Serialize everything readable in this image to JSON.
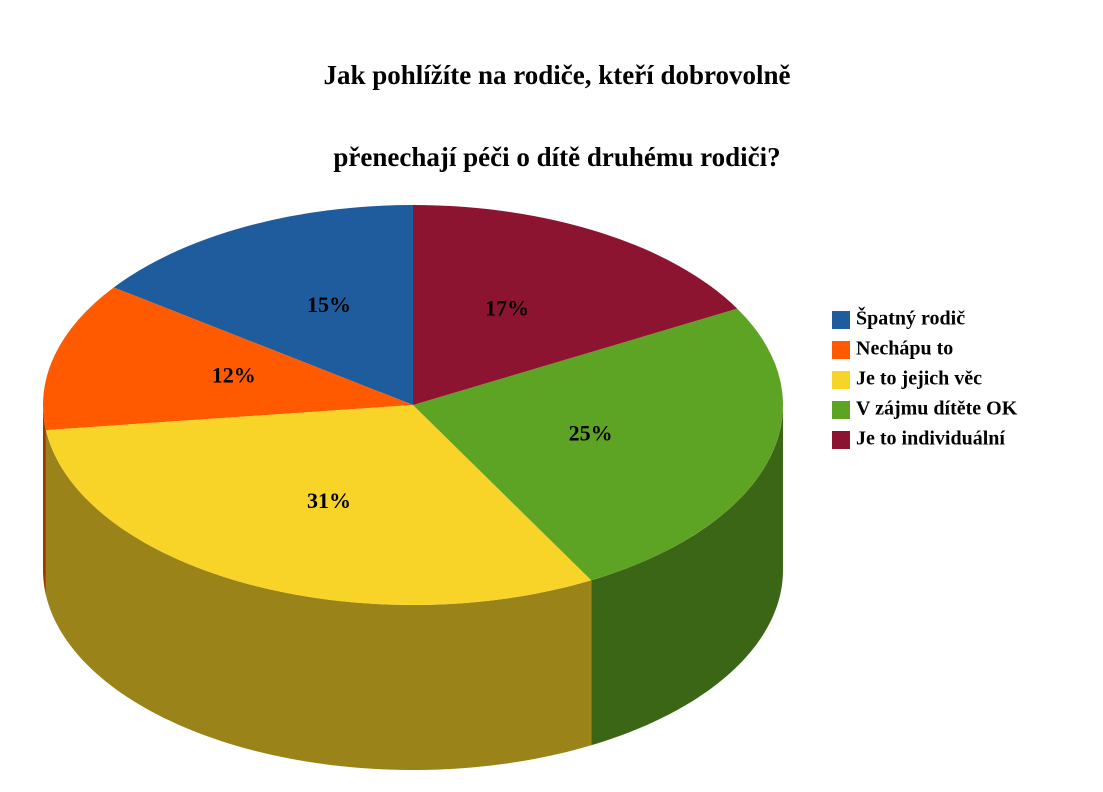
{
  "chart_data": {
    "type": "pie",
    "title": [
      "Jak pohlížíte na rodiče, kteří dobrovolně",
      "přenechají péči o dítě druhému rodiči?"
    ],
    "categories": [
      "Špatný rodič",
      "Nechápu to",
      "Je to jejich věc",
      "V zájmu dítěte OK",
      "Je to individuální"
    ],
    "values": [
      15,
      12,
      31,
      25,
      17
    ],
    "value_labels": [
      "15%",
      "12%",
      "31%",
      "25%",
      "17%"
    ],
    "colors": [
      "#1f5c9e",
      "#ff5a00",
      "#f8d328",
      "#5ea424",
      "#8c1430"
    ],
    "legend": "right"
  }
}
